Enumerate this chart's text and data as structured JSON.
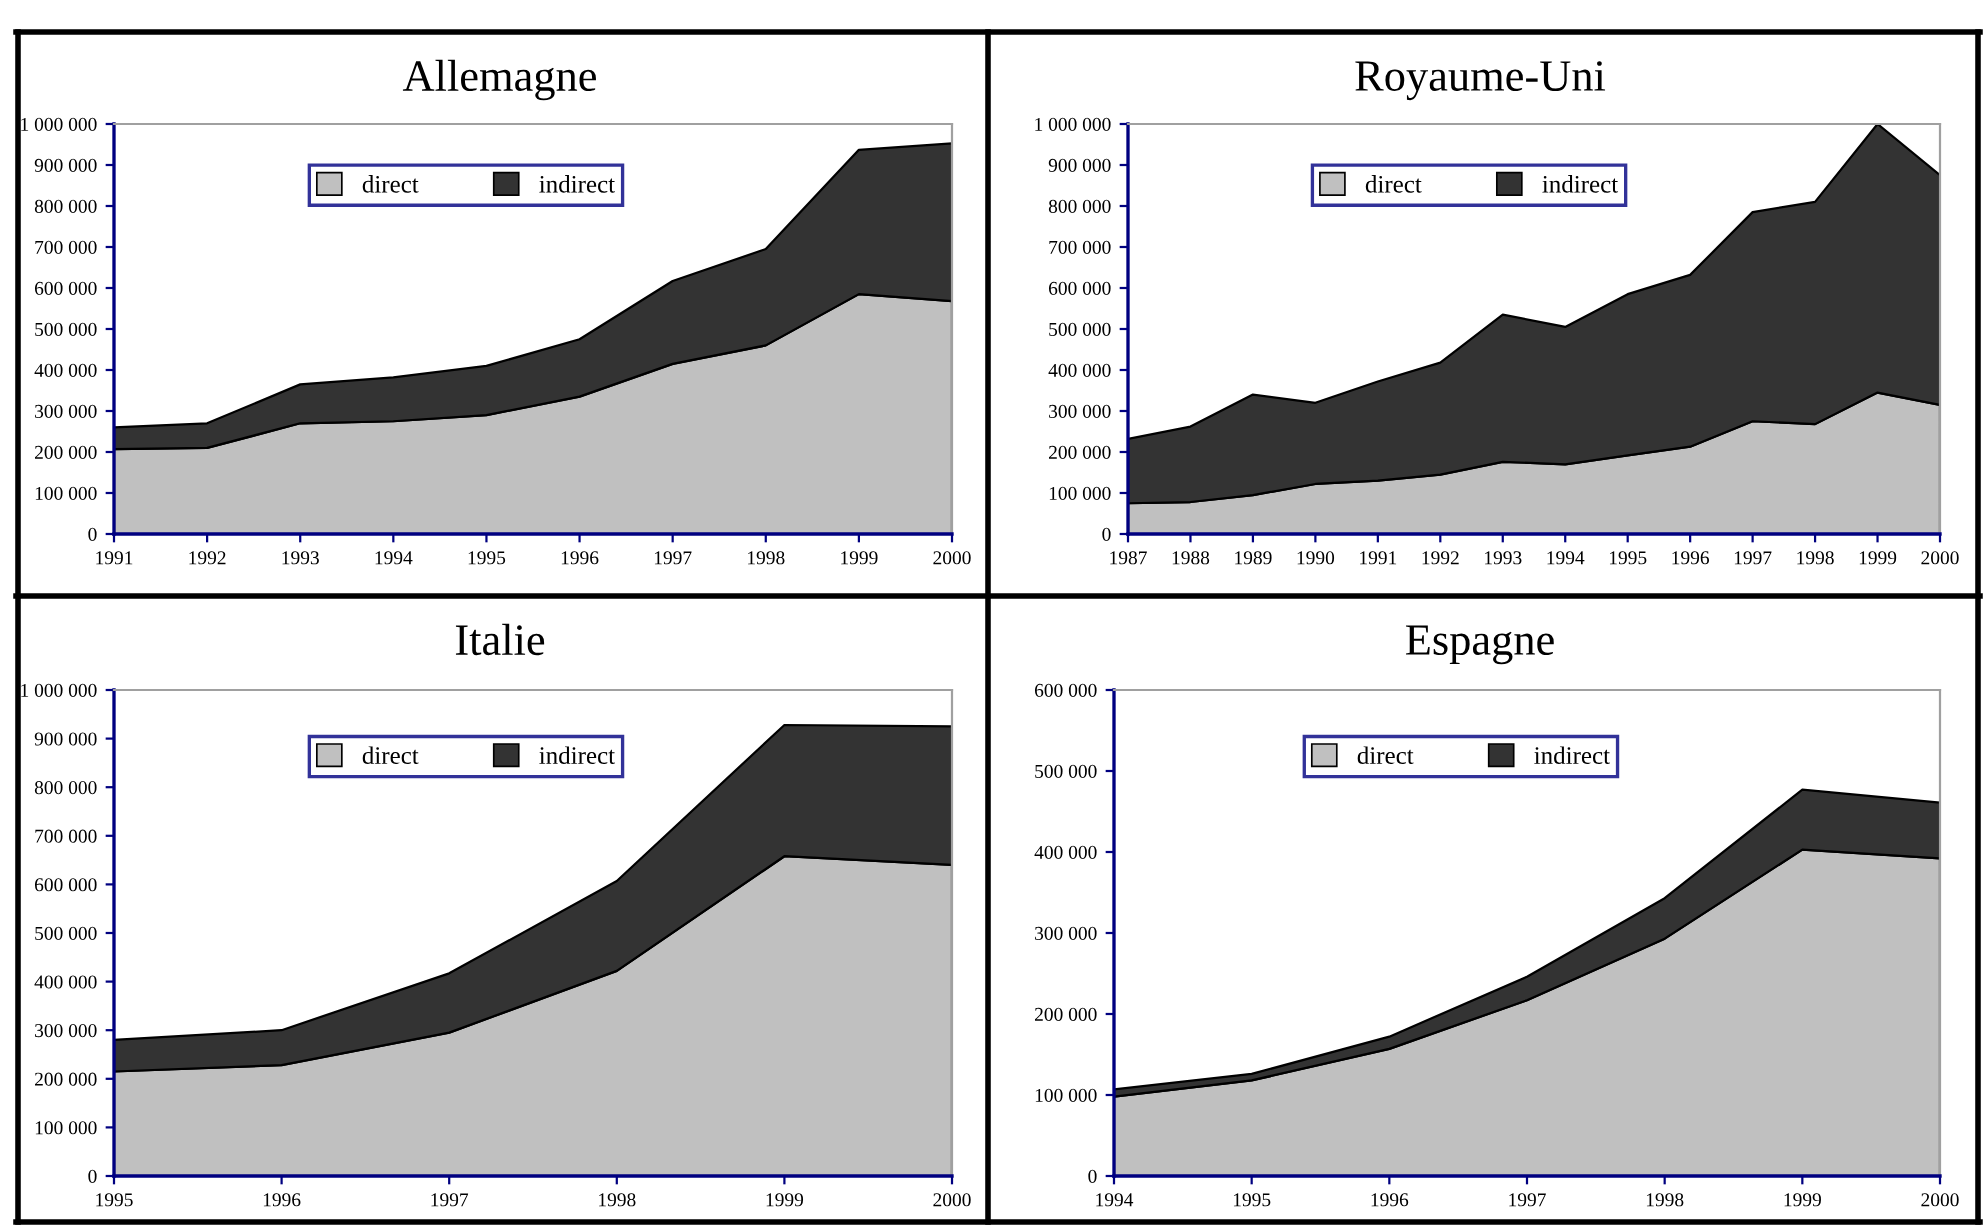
{
  "chart_data": [
    {
      "type": "area",
      "title": "Allemagne",
      "stacked": true,
      "legend": "top",
      "x": [
        1991,
        1992,
        1993,
        1994,
        1995,
        1996,
        1997,
        1998,
        1999,
        2000
      ],
      "series": [
        {
          "name": "direct",
          "color": "#c0c0c0",
          "values": [
            207000,
            210000,
            270000,
            275000,
            290000,
            335000,
            415000,
            460000,
            585000,
            568000
          ]
        },
        {
          "name": "indirect",
          "color": "#333333",
          "values": [
            53000,
            60000,
            95000,
            107000,
            120000,
            140000,
            202000,
            235000,
            352000,
            385000
          ]
        }
      ],
      "xlim": [
        1991,
        2000
      ],
      "xticks": [
        1991,
        1992,
        1993,
        1994,
        1995,
        1996,
        1997,
        1998,
        1999,
        2000
      ],
      "ylim": [
        0,
        1000000
      ],
      "yticks": [
        0,
        {
          "value": 100000,
          "label": "100 000"
        },
        {
          "value": 200000,
          "label": "200 000"
        },
        {
          "value": 300000,
          "label": "300 000"
        },
        {
          "value": 400000,
          "label": "400 000"
        },
        {
          "value": 500000,
          "label": "500 000"
        },
        {
          "value": 600000,
          "label": "600 000"
        },
        {
          "value": 700000,
          "label": "700 000"
        },
        {
          "value": 800000,
          "label": "800 000"
        },
        {
          "value": 900000,
          "label": "900 000"
        },
        {
          "value": 1000000,
          "label": "1 000 000"
        }
      ]
    },
    {
      "type": "area",
      "title": "Royaume-Uni",
      "stacked": true,
      "legend": "top",
      "x": [
        1987,
        1988,
        1989,
        1990,
        1991,
        1992,
        1993,
        1994,
        1995,
        1996,
        1997,
        1998,
        1999,
        2000
      ],
      "series": [
        {
          "name": "direct",
          "color": "#c0c0c0",
          "values": [
            75000,
            78000,
            95000,
            122000,
            130000,
            145000,
            176000,
            170000,
            192000,
            213000,
            275000,
            268000,
            345000,
            315000
          ]
        },
        {
          "name": "indirect",
          "color": "#333333",
          "values": [
            157000,
            184000,
            245000,
            198000,
            242000,
            273000,
            359000,
            335000,
            393000,
            419000,
            510000,
            542000,
            655000,
            560000
          ]
        }
      ],
      "xlim": [
        1987,
        2000
      ],
      "xticks": [
        1987,
        1988,
        1989,
        1990,
        1991,
        1992,
        1993,
        1994,
        1995,
        1996,
        1997,
        1998,
        1999,
        2000
      ],
      "ylim": [
        0,
        1000000
      ],
      "yticks": [
        0,
        {
          "value": 100000,
          "label": "100 000"
        },
        {
          "value": 200000,
          "label": "200 000"
        },
        {
          "value": 300000,
          "label": "300 000"
        },
        {
          "value": 400000,
          "label": "400 000"
        },
        {
          "value": 500000,
          "label": "500 000"
        },
        {
          "value": 600000,
          "label": "600 000"
        },
        {
          "value": 700000,
          "label": "700 000"
        },
        {
          "value": 800000,
          "label": "800 000"
        },
        {
          "value": 900000,
          "label": "900 000"
        },
        {
          "value": 1000000,
          "label": "1 000 000"
        }
      ]
    },
    {
      "type": "area",
      "title": "Italie",
      "stacked": true,
      "legend": "top",
      "x": [
        1995,
        1996,
        1997,
        1998,
        1999,
        2000
      ],
      "series": [
        {
          "name": "direct",
          "color": "#c0c0c0",
          "values": [
            215000,
            228000,
            295000,
            422000,
            658000,
            640000
          ]
        },
        {
          "name": "indirect",
          "color": "#333333",
          "values": [
            65000,
            72000,
            122000,
            185000,
            270000,
            285000
          ]
        }
      ],
      "xlim": [
        1995,
        2000
      ],
      "xticks": [
        1995,
        1996,
        1997,
        1998,
        1999,
        2000
      ],
      "ylim": [
        0,
        1000000
      ],
      "yticks": [
        0,
        {
          "value": 100000,
          "label": "100 000"
        },
        {
          "value": 200000,
          "label": "200 000"
        },
        {
          "value": 300000,
          "label": "300 000"
        },
        {
          "value": 400000,
          "label": "400 000"
        },
        {
          "value": 500000,
          "label": "500 000"
        },
        {
          "value": 600000,
          "label": "600 000"
        },
        {
          "value": 700000,
          "label": "700 000"
        },
        {
          "value": 800000,
          "label": "800 000"
        },
        {
          "value": 900000,
          "label": "900 000"
        },
        {
          "value": 1000000,
          "label": "1 000 000"
        }
      ]
    },
    {
      "type": "area",
      "title": "Espagne",
      "stacked": true,
      "legend": "top",
      "x": [
        1994,
        1995,
        1996,
        1997,
        1998,
        1999,
        2000
      ],
      "series": [
        {
          "name": "direct",
          "color": "#c0c0c0",
          "values": [
            98000,
            118000,
            157000,
            217000,
            293000,
            403000,
            392000
          ]
        },
        {
          "name": "indirect",
          "color": "#333333",
          "values": [
            9000,
            8000,
            15000,
            29000,
            50000,
            74000,
            69000
          ]
        }
      ],
      "xlim": [
        1994,
        2000
      ],
      "xticks": [
        1994,
        1995,
        1996,
        1997,
        1998,
        1999,
        2000
      ],
      "ylim": [
        0,
        600000
      ],
      "yticks": [
        0,
        {
          "value": 100000,
          "label": "100 000"
        },
        {
          "value": 200000,
          "label": "200 000"
        },
        {
          "value": 300000,
          "label": "300 000"
        },
        {
          "value": 400000,
          "label": "400 000"
        },
        {
          "value": 500000,
          "label": "500 000"
        },
        {
          "value": 600000,
          "label": "600 000"
        }
      ]
    }
  ]
}
